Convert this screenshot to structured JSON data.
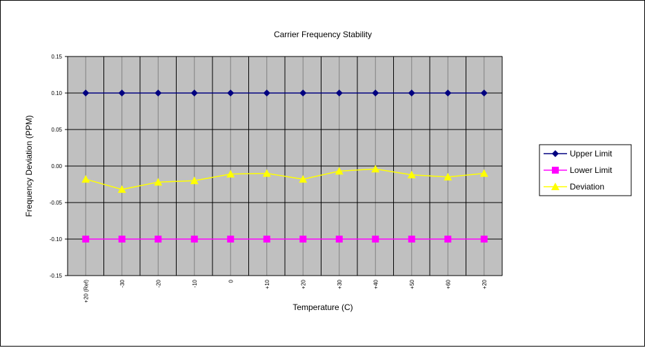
{
  "chart_data": {
    "type": "line",
    "title": "Carrier Frequency Stability",
    "x_label": "Temperature (C)",
    "y_label": "Frequency Deviation (PPM)",
    "categories": [
      "+20 (Ref)",
      "-30",
      "-20",
      "-10",
      "0",
      "+10",
      "+20",
      "+30",
      "+40",
      "+50",
      "+60",
      "+20"
    ],
    "series": [
      {
        "name": "Upper Limit",
        "color": "#000080",
        "marker": "diamond",
        "values": [
          0.1,
          0.1,
          0.1,
          0.1,
          0.1,
          0.1,
          0.1,
          0.1,
          0.1,
          0.1,
          0.1,
          0.1
        ]
      },
      {
        "name": "Lower Limit",
        "color": "#ff00ff",
        "marker": "square",
        "values": [
          -0.1,
          -0.1,
          -0.1,
          -0.1,
          -0.1,
          -0.1,
          -0.1,
          -0.1,
          -0.1,
          -0.1,
          -0.1,
          -0.1
        ]
      },
      {
        "name": "Deviation",
        "color": "#ffff00",
        "marker": "triangle",
        "values": [
          -0.018,
          -0.032,
          -0.022,
          -0.02,
          -0.011,
          -0.01,
          -0.018,
          -0.007,
          -0.004,
          -0.012,
          -0.015,
          -0.01
        ]
      }
    ],
    "ylim": [
      -0.15,
      0.15
    ],
    "yticks": [
      -0.15,
      {
        "value": -0.1,
        "label": "-0.10"
      },
      -0.05,
      {
        "value": 0,
        "label": "0.00"
      },
      0.05,
      {
        "value": 0.1,
        "label": "0.10"
      },
      0.15
    ],
    "grid": true,
    "plot_background": "#c0c0c0",
    "legend": "right"
  }
}
